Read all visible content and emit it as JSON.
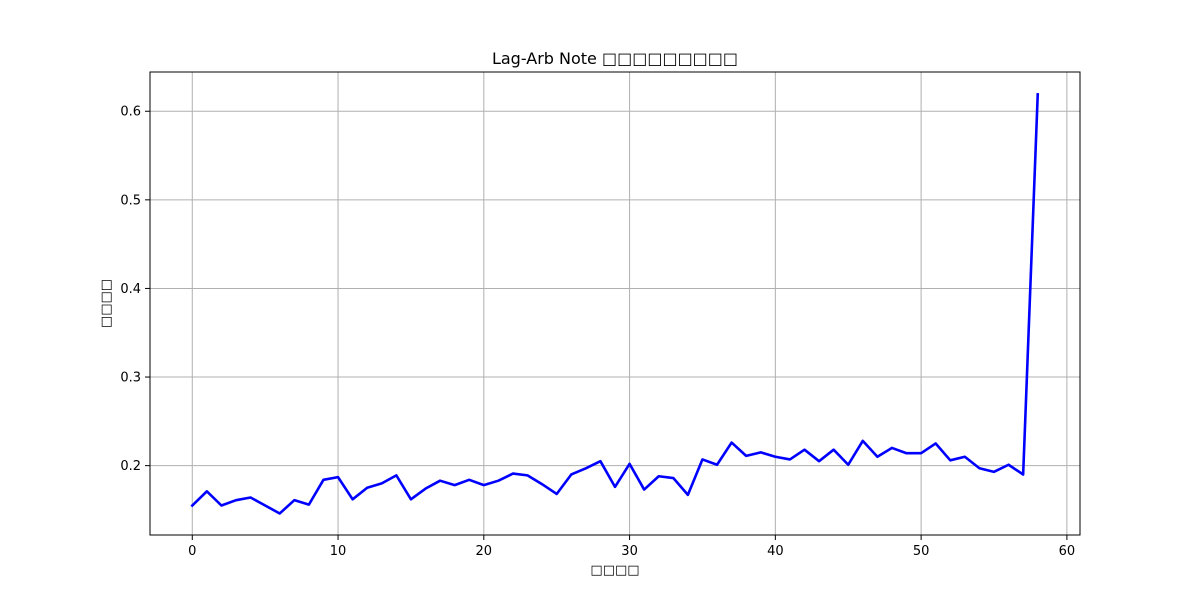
{
  "chart_data": {
    "type": "line",
    "title": "Lag-Arb Note □□□□□□□□□",
    "xlabel": "□□□□",
    "ylabel": "□□□□",
    "xlim": [
      -2.9,
      60.9
    ],
    "ylim": [
      0.1217,
      0.6443
    ],
    "xticks": [
      0,
      10,
      20,
      30,
      40,
      50,
      60
    ],
    "yticks": [
      0.2,
      0.3,
      0.4,
      0.5,
      0.6
    ],
    "grid": true,
    "colors": {
      "line": "#0000ff",
      "grid": "#b0b0b0"
    },
    "series": [
      {
        "x": [
          0,
          1,
          2,
          3,
          4,
          5,
          6,
          7,
          8,
          9,
          10,
          11,
          12,
          13,
          14,
          15,
          16,
          17,
          18,
          19,
          20,
          21,
          22,
          23,
          24,
          25,
          26,
          27,
          28,
          29,
          30,
          31,
          32,
          33,
          34,
          35,
          36,
          37,
          38,
          39,
          40,
          41,
          42,
          43,
          44,
          45,
          46,
          47,
          48,
          49,
          50,
          51,
          52,
          53,
          54,
          55,
          56,
          57,
          58
        ],
        "values": [
          0.155,
          0.171,
          0.155,
          0.161,
          0.164,
          0.155,
          0.146,
          0.161,
          0.156,
          0.184,
          0.187,
          0.162,
          0.175,
          0.18,
          0.189,
          0.162,
          0.174,
          0.183,
          0.178,
          0.184,
          0.178,
          0.183,
          0.191,
          0.189,
          0.179,
          0.168,
          0.19,
          0.197,
          0.205,
          0.176,
          0.202,
          0.173,
          0.188,
          0.186,
          0.167,
          0.207,
          0.201,
          0.226,
          0.211,
          0.215,
          0.21,
          0.207,
          0.218,
          0.205,
          0.218,
          0.201,
          0.228,
          0.21,
          0.22,
          0.214,
          0.214,
          0.225,
          0.206,
          0.21,
          0.197,
          0.193,
          0.201,
          0.19,
          0.619
        ]
      }
    ]
  }
}
